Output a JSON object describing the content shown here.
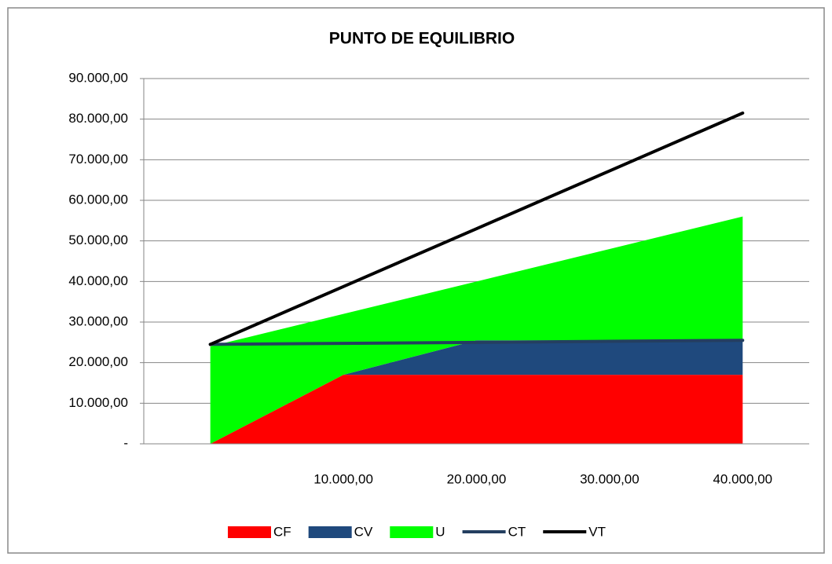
{
  "chart_data": {
    "type": "area",
    "title": "PUNTO DE EQUILIBRIO",
    "categories": [
      null,
      "10.000,00",
      "20.000,00",
      "30.000,00",
      "40.000,00"
    ],
    "series": [
      {
        "name": "CF",
        "kind": "area",
        "color": "#ff0000",
        "values": [
          0,
          17000,
          17000,
          17000,
          17000
        ]
      },
      {
        "name": "CV",
        "kind": "area",
        "color": "#1f497d",
        "values": [
          0,
          0,
          8500,
          8500,
          8500
        ]
      },
      {
        "name": "U",
        "kind": "area",
        "color": "#00ff00",
        "values": [
          24000,
          15000,
          14500,
          22500,
          30500
        ]
      },
      {
        "name": "CT",
        "kind": "line",
        "color": "#243f60",
        "values": [
          24500,
          24750,
          25000,
          25250,
          25500
        ]
      },
      {
        "name": "VT",
        "kind": "line",
        "color": "#000000",
        "values": [
          24500,
          38750,
          53000,
          67250,
          81500
        ]
      }
    ],
    "stacked": true,
    "ylim": [
      0,
      90000
    ],
    "yticks": [
      {
        "value": 0,
        "label": "-"
      },
      {
        "value": 10000,
        "label": "10.000,00"
      },
      {
        "value": 20000,
        "label": "20.000,00"
      },
      {
        "value": 30000,
        "label": "30.000,00"
      },
      {
        "value": 40000,
        "label": "40.000,00"
      },
      {
        "value": 50000,
        "label": "50.000,00"
      },
      {
        "value": 60000,
        "label": "60.000,00"
      },
      {
        "value": 70000,
        "label": "70.000,00"
      },
      {
        "value": 80000,
        "label": "80.000,00"
      },
      {
        "value": 90000,
        "label": "90.000,00"
      }
    ],
    "grid": true,
    "legend": "bottom"
  }
}
